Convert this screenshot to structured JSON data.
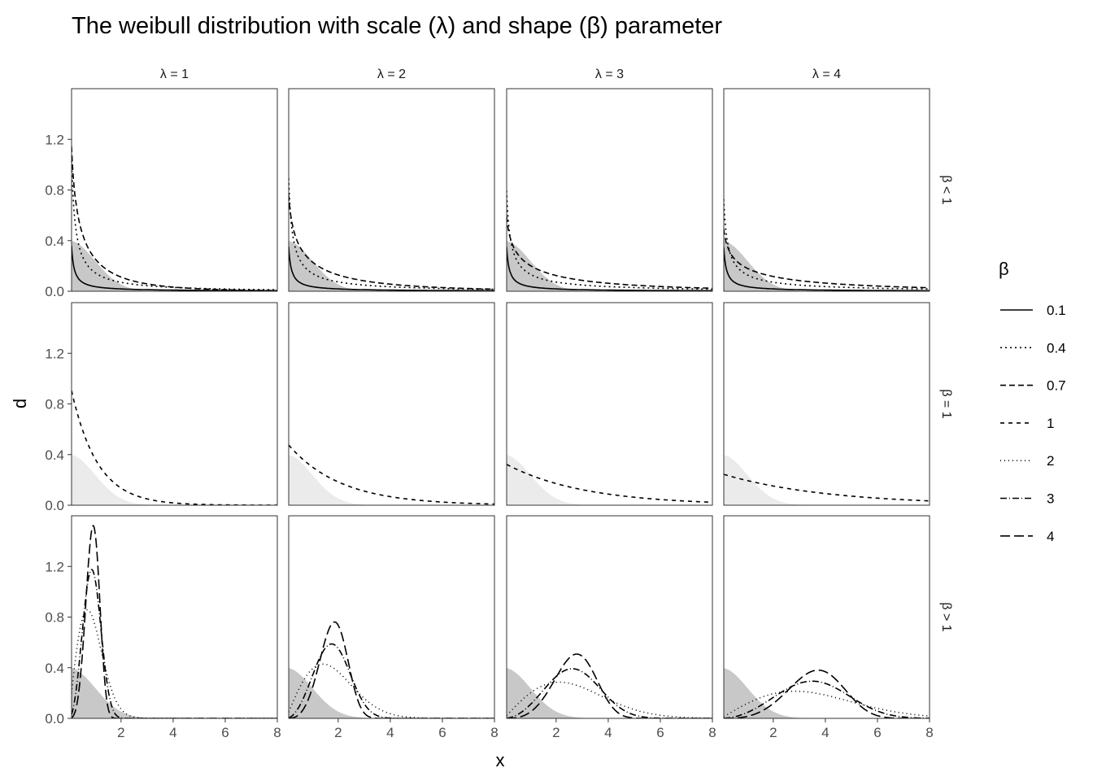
{
  "chart_data": {
    "type": "line",
    "title": "The weibull distribution with scale (λ) and shape (β) parameter",
    "xlabel": "x",
    "ylabel": "d",
    "xlim": [
      0.1,
      8
    ],
    "ylim": [
      0,
      1.6
    ],
    "x_ticks": [
      2,
      4,
      6,
      8
    ],
    "y_ticks": [
      0.0,
      0.4,
      0.8,
      1.2
    ],
    "x_tick_labels": [
      "2",
      "4",
      "6",
      "8"
    ],
    "y_tick_labels": [
      "0.0",
      "0.4",
      "0.8",
      "1.2"
    ],
    "grid": false,
    "facet_columns": [
      "λ = 1",
      "λ = 2",
      "λ = 3",
      "λ = 4"
    ],
    "column_scale": [
      1,
      2,
      3,
      4
    ],
    "facet_rows": [
      "β < 1",
      "β = 1",
      "β > 1"
    ],
    "row_shapes": [
      [
        0.1,
        0.4,
        0.7
      ],
      [
        1
      ],
      [
        2,
        3,
        4
      ]
    ],
    "row_fill_colors": [
      "#c8c8c8",
      "#ebebeb",
      "#c8c8c8"
    ],
    "reference_area": "standard normal density",
    "legend": {
      "title": "β",
      "position": "right",
      "entries": [
        {
          "label": "0.1",
          "dash": "none"
        },
        {
          "label": "0.4",
          "dash": "2 4"
        },
        {
          "label": "0.7",
          "dash": "7 4"
        },
        {
          "label": "1",
          "dash": "5 5"
        },
        {
          "label": "2",
          "dash": "1 4"
        },
        {
          "label": "3",
          "dash": "8 3 1 3"
        },
        {
          "label": "4",
          "dash": "12 5"
        }
      ]
    }
  }
}
